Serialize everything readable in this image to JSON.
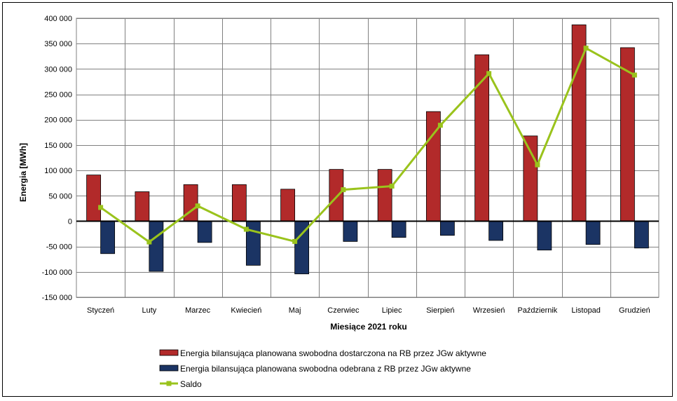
{
  "chart_data": {
    "type": "bar",
    "categories": [
      "Styczeń",
      "Luty",
      "Marzec",
      "Kwiecień",
      "Maj",
      "Czerwiec",
      "Lipiec",
      "Sierpień",
      "Wrzesień",
      "Październik",
      "Listopad",
      "Grudzień"
    ],
    "series": [
      {
        "name": "Energia bilansująca planowana swobodna dostarczona na RB przez JGw aktywne",
        "type": "bar",
        "color": "#b22a2a",
        "values": [
          91000,
          58000,
          72000,
          72000,
          63000,
          102000,
          102000,
          216000,
          328000,
          168000,
          387000,
          342000
        ]
      },
      {
        "name": "Energia bilansująca planowana swobodna odebrana z RB przez JGw aktywne",
        "type": "bar",
        "color": "#1b3464",
        "values": [
          -64000,
          -99000,
          -42000,
          -87000,
          -104000,
          -40000,
          -32000,
          -28000,
          -38000,
          -57000,
          -46000,
          -53000
        ]
      },
      {
        "name": "Saldo",
        "type": "line",
        "color": "#9ac31c",
        "values": [
          27000,
          -41000,
          30000,
          -16000,
          -40000,
          62000,
          69000,
          189000,
          291000,
          111000,
          341000,
          288000
        ]
      }
    ],
    "xlabel": "Miesiące 2021  roku",
    "ylabel": "Energia [MWh]",
    "ylim": [
      -150000,
      400000
    ],
    "ytick_step": 50000,
    "ytick_labels": [
      "-150 000",
      "-100 000",
      "-50 000",
      "0",
      "50 000",
      "100 000",
      "150 000",
      "200 000",
      "250 000",
      "300 000",
      "350 000",
      "400 000"
    ],
    "grid": true,
    "legend_position": "bottom"
  }
}
